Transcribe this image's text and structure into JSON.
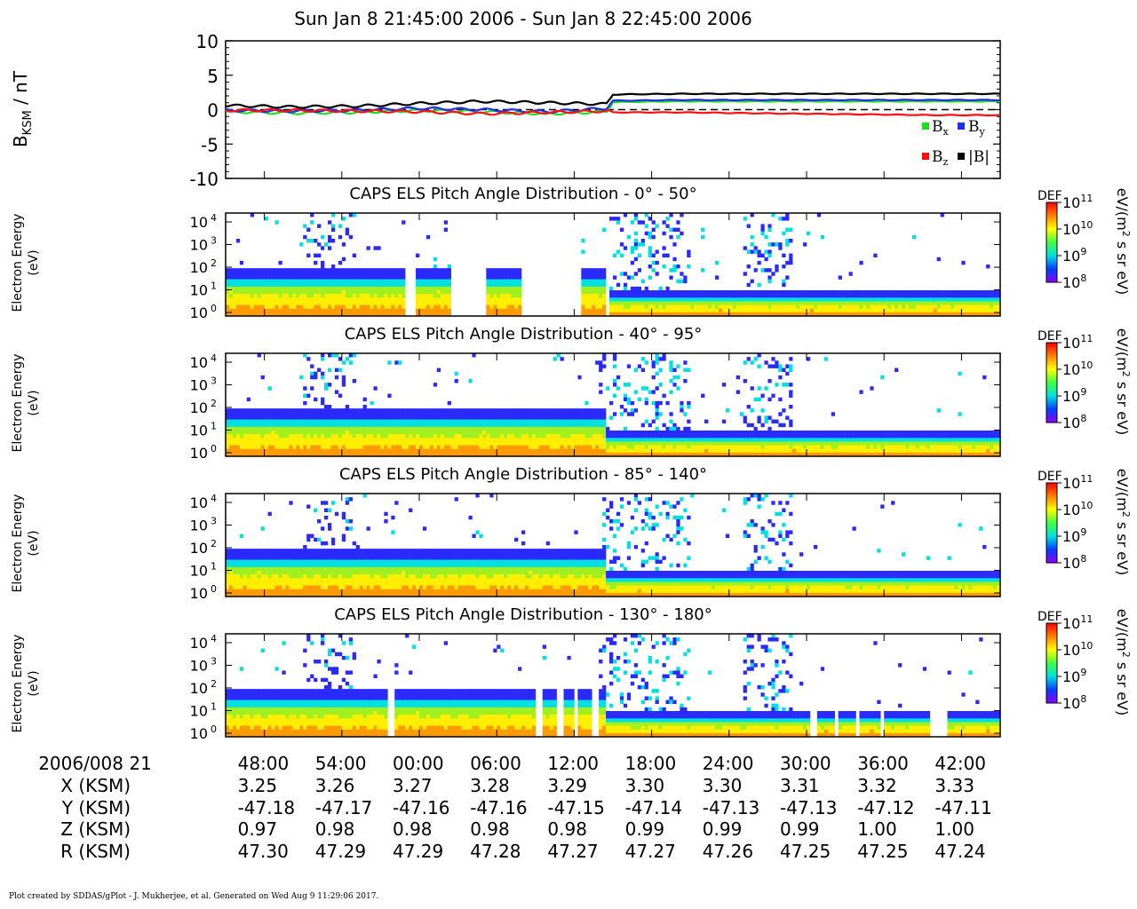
{
  "header": {
    "title": "Sun Jan  8 21:45:00 2006 - Sun Jan  8 22:45:00 2006"
  },
  "mag_panel": {
    "ylabel_main": "B",
    "ylabel_sub": "KSM",
    "ylabel_unit": " / nT",
    "legend": [
      {
        "main": "B",
        "sub": "x",
        "color": "#22dd22"
      },
      {
        "main": "B",
        "sub": "y",
        "color": "#1f2fe6"
      },
      {
        "main": "B",
        "sub": "z",
        "color": "#ff1010"
      },
      {
        "main": "|B|",
        "sub": "",
        "color": "#000000"
      }
    ]
  },
  "spectrogram_panels": [
    {
      "title": "CAPS ELS Pitch Angle Distribution - 0° - 50°",
      "ylabel1": "Electron Energy",
      "ylabel2": "(eV)"
    },
    {
      "title": "CAPS ELS Pitch Angle Distribution - 40° - 95°",
      "ylabel1": "Electron Energy",
      "ylabel2": "(eV)"
    },
    {
      "title": "CAPS ELS Pitch Angle Distribution - 85° - 140°",
      "ylabel1": "Electron Energy",
      "ylabel2": "(eV)"
    },
    {
      "title": "CAPS ELS Pitch Angle Distribution - 130° - 180°",
      "ylabel1": "Electron Energy",
      "ylabel2": "(eV)"
    }
  ],
  "colorbar": {
    "label": "DEF",
    "unit_part1": "eV/(m",
    "unit_sup": "2",
    "unit_part2": " s sr eV)",
    "ticks": [
      {
        "base": "10",
        "exp": "11"
      },
      {
        "base": "10",
        "exp": "10"
      },
      {
        "base": "10",
        "exp": "9"
      },
      {
        "base": "10",
        "exp": "8"
      }
    ],
    "colors": [
      "#ff0000",
      "#ff8000",
      "#ffff00",
      "#40ff40",
      "#00e0e0",
      "#0040ff",
      "#9000ff"
    ]
  },
  "ephemeris": {
    "date_label": "2006/008 21",
    "row_labels": [
      "X (KSM)",
      "Y (KSM)",
      "Z (KSM)",
      "R (KSM)"
    ],
    "rows": {
      "x": [
        "3.25",
        "3.26",
        "3.27",
        "3.28",
        "3.29",
        "3.30",
        "3.30",
        "3.31",
        "3.32",
        "3.33"
      ],
      "y": [
        "-47.18",
        "-47.17",
        "-47.16",
        "-47.16",
        "-47.15",
        "-47.14",
        "-47.13",
        "-47.13",
        "-47.12",
        "-47.11"
      ],
      "z": [
        "0.97",
        "0.98",
        "0.98",
        "0.98",
        "0.98",
        "0.99",
        "0.99",
        "0.99",
        "1.00",
        "1.00"
      ],
      "r": [
        "47.30",
        "47.29",
        "47.29",
        "47.28",
        "47.27",
        "47.27",
        "47.26",
        "47.25",
        "47.25",
        "47.24"
      ]
    }
  },
  "footer": "Plot created by SDDAS/gPlot - J. Mukherjee, et al.  Generated on Wed Aug  9 11:29:06 2017.",
  "chart_data": [
    {
      "type": "line",
      "title": "",
      "xlabel": "",
      "ylabel": "B KSM / nT",
      "x_ticks": [
        "48:00",
        "54:00",
        "00:00",
        "06:00",
        "12:00",
        "18:00",
        "24:00",
        "30:00",
        "36:00",
        "42:00"
      ],
      "x_minutes_range": [
        0,
        60
      ],
      "ylim": [
        -10,
        10
      ],
      "y_ticks": [
        10,
        5,
        0,
        -5,
        -10
      ],
      "reference_line": {
        "y": 0,
        "style": "dashed"
      },
      "x": [
        0,
        5,
        10,
        15,
        20,
        25,
        29.5,
        30,
        35,
        40,
        45,
        50,
        55,
        60
      ],
      "series": [
        {
          "name": "Bx",
          "color": "#22dd22",
          "values": [
            -0.3,
            -0.5,
            -0.4,
            -0.1,
            -0.3,
            -0.6,
            -0.3,
            1.1,
            1.2,
            1.2,
            1.2,
            1.2,
            1.2,
            1.2
          ]
        },
        {
          "name": "By",
          "color": "#1f2fe6",
          "values": [
            -0.1,
            -0.2,
            -0.1,
            0.2,
            0.0,
            -0.3,
            0.2,
            1.3,
            1.4,
            1.4,
            1.4,
            1.4,
            1.4,
            1.4
          ]
        },
        {
          "name": "Bz",
          "color": "#ff1010",
          "values": [
            -0.1,
            -0.1,
            -0.2,
            -0.3,
            -0.6,
            -0.4,
            -0.2,
            -0.4,
            -0.4,
            -0.5,
            -0.6,
            -0.7,
            -0.8,
            -0.8
          ]
        },
        {
          "name": "|B|",
          "color": "#000000",
          "values": [
            0.6,
            0.4,
            0.5,
            0.9,
            1.2,
            1.0,
            0.8,
            2.2,
            2.3,
            2.3,
            2.3,
            2.3,
            2.3,
            2.3
          ]
        }
      ]
    },
    {
      "type": "heatmap",
      "title": "CAPS ELS Pitch Angle Distribution - 0° - 50°",
      "ylabel": "Electron Energy (eV)",
      "y_scale": "log",
      "y_ticks": [
        "10^4",
        "10^3",
        "10^2",
        "10^1",
        "10^0"
      ],
      "colorbar_range": [
        "10^8",
        "10^11"
      ],
      "colorbar_label": "DEF",
      "data_gaps_minutes": [
        [
          14.0,
          14.6
        ],
        [
          17.5,
          20.3
        ],
        [
          22.8,
          27.5
        ],
        [
          29.4,
          29.6
        ]
      ],
      "low_energy_cutoff_eV": [
        {
          "from": 0,
          "to": 29.5,
          "value": 120
        },
        {
          "from": 29.5,
          "to": 60,
          "value": 20
        }
      ]
    },
    {
      "type": "heatmap",
      "title": "CAPS ELS Pitch Angle Distribution - 40° - 95°",
      "ylabel": "Electron Energy (eV)",
      "y_scale": "log",
      "y_ticks": [
        "10^4",
        "10^3",
        "10^2",
        "10^1",
        "10^0"
      ],
      "colorbar_range": [
        "10^8",
        "10^11"
      ],
      "colorbar_label": "DEF",
      "data_gaps_minutes": [],
      "low_energy_cutoff_eV": [
        {
          "from": 0,
          "to": 29.5,
          "value": 120
        },
        {
          "from": 29.5,
          "to": 60,
          "value": 20
        }
      ]
    },
    {
      "type": "heatmap",
      "title": "CAPS ELS Pitch Angle Distribution - 85° - 140°",
      "ylabel": "Electron Energy (eV)",
      "y_scale": "log",
      "y_ticks": [
        "10^4",
        "10^3",
        "10^2",
        "10^1",
        "10^0"
      ],
      "colorbar_range": [
        "10^8",
        "10^11"
      ],
      "colorbar_label": "DEF",
      "data_gaps_minutes": [],
      "low_energy_cutoff_eV": [
        {
          "from": 0,
          "to": 29.5,
          "value": 120
        },
        {
          "from": 29.5,
          "to": 60,
          "value": 20
        }
      ]
    },
    {
      "type": "heatmap",
      "title": "CAPS ELS Pitch Angle Distribution - 130° - 180°",
      "ylabel": "Electron Energy (eV)",
      "y_scale": "log",
      "y_ticks": [
        "10^4",
        "10^3",
        "10^2",
        "10^1",
        "10^0"
      ],
      "colorbar_range": [
        "10^8",
        "10^11"
      ],
      "colorbar_label": "DEF",
      "data_gaps_minutes": [
        [
          12.6,
          13.0
        ],
        [
          24.0,
          24.6
        ],
        [
          25.6,
          26.2
        ],
        [
          27.0,
          27.4
        ],
        [
          28.4,
          28.8
        ],
        [
          45.3,
          45.7
        ],
        [
          47.1,
          47.4
        ],
        [
          48.7,
          49.1
        ],
        [
          50.7,
          51.0
        ],
        [
          54.6,
          55.8
        ]
      ],
      "low_energy_cutoff_eV": [
        {
          "from": 0,
          "to": 29.5,
          "value": 120
        },
        {
          "from": 29.5,
          "to": 60,
          "value": 20
        }
      ]
    }
  ]
}
